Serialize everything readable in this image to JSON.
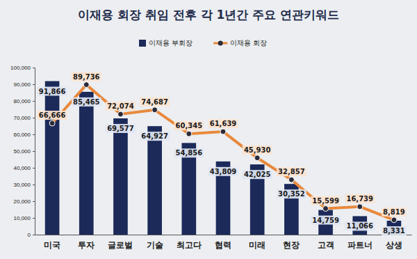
{
  "chart_data": {
    "type": "bar",
    "title": "이재용 회장 취임 전후 각 1년간 주요 연관키워드",
    "categories": [
      "미국",
      "투자",
      "글로벌",
      "기술",
      "최고다",
      "협력",
      "미래",
      "현장",
      "고객",
      "파트너",
      "상생"
    ],
    "series": [
      {
        "name": "이재용 부회장",
        "type": "bar",
        "color": "#1c2a5a",
        "values": [
          91866,
          85465,
          69577,
          64927,
          54856,
          43809,
          42025,
          30352,
          14759,
          11066,
          8331
        ],
        "value_labels": [
          "91,866",
          "85,465",
          "69,577",
          "64,927",
          "54,856",
          "43,809",
          "42,025",
          "30,352",
          "14,759",
          "11,066",
          "8,331"
        ]
      },
      {
        "name": "이재용 회장",
        "type": "line",
        "color": "#e8893c",
        "marker": "circle",
        "values": [
          66666,
          89736,
          72074,
          74687,
          60345,
          61639,
          45930,
          32857,
          15599,
          16739,
          8819
        ],
        "value_labels": [
          "66,666",
          "89,736",
          "72,074",
          "74,687",
          "60,345",
          "61,639",
          "45,930",
          "32,857",
          "15,599",
          "16,739",
          "8,819"
        ]
      }
    ],
    "ylim": [
      0,
      100000
    ],
    "yticks": [
      0,
      {
        "value": 10000,
        "label": "10,000"
      },
      {
        "value": 20000,
        "label": "20,000"
      },
      {
        "value": 30000,
        "label": "30,000"
      },
      {
        "value": 40000,
        "label": "40,000"
      },
      {
        "value": 50000,
        "label": "50,000"
      },
      {
        "value": 60000,
        "label": "60,000"
      },
      {
        "value": 70000,
        "label": "70,000"
      },
      {
        "value": 80000,
        "label": "80,000"
      },
      {
        "value": 90000,
        "label": "90,000"
      },
      {
        "value": 100000,
        "label": "100,000"
      }
    ],
    "grid": false,
    "legend": "top",
    "data_labels": true
  }
}
